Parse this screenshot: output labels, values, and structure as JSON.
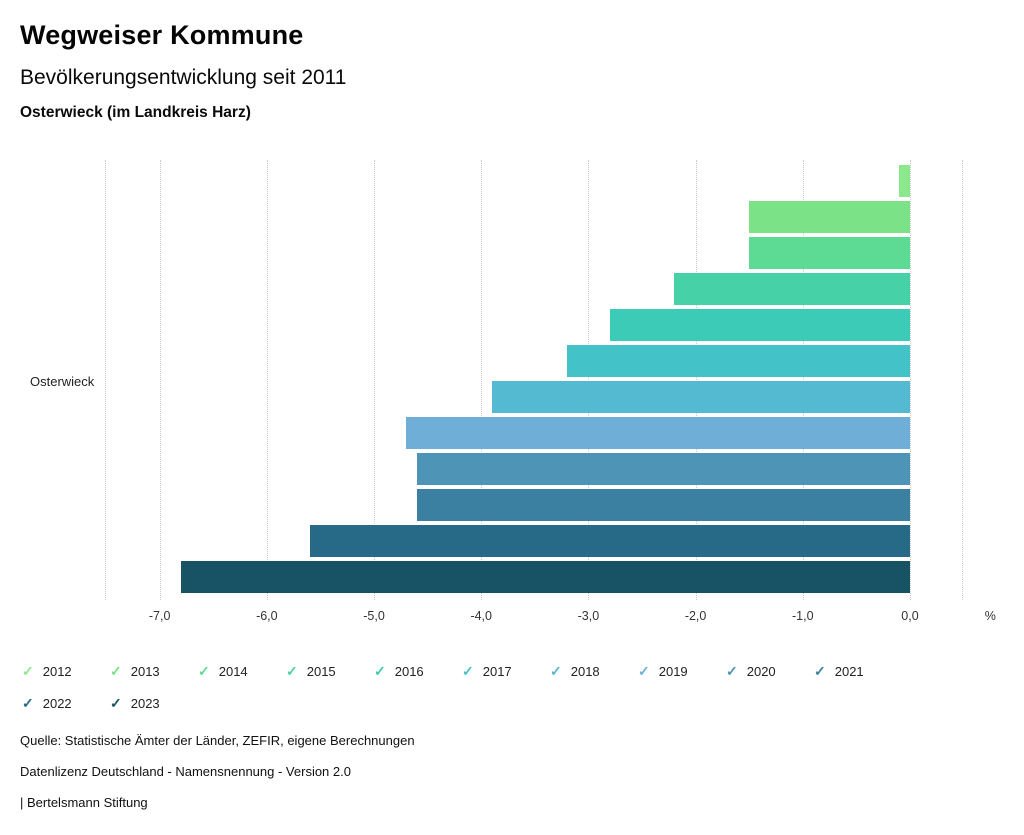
{
  "header": {
    "title": "Wegweiser Kommune",
    "subtitle": "Bevölkerungsentwicklung seit 2011",
    "region": "Osterwieck (im Landkreis Harz)"
  },
  "chart_data": {
    "type": "bar",
    "orientation": "horizontal",
    "title": "Bevölkerungsentwicklung seit 2011",
    "category_label": "Osterwieck",
    "xlabel": "%",
    "ylabel": "Osterwieck",
    "xlim": [
      -7.51,
      0.7
    ],
    "x_ticks": [
      -7,
      -6,
      -5,
      -4,
      -3,
      -2,
      -1,
      0
    ],
    "x_tick_labels": [
      "-7,0",
      "-6,0",
      "-5,0",
      "-4,0",
      "-3,0",
      "-2,0",
      "-1,0",
      "0,0"
    ],
    "x_axis_unit": "%",
    "gridline_values": [
      -7.51,
      -7,
      -6,
      -5,
      -4,
      -3,
      -2,
      -1,
      0,
      0.49
    ],
    "grid": true,
    "legend_position": "bottom",
    "check_glyph": "✓",
    "series": [
      {
        "name": "2012",
        "value": -0.1,
        "color": "#8CE88C"
      },
      {
        "name": "2013",
        "value": -1.5,
        "color": "#7CE287"
      },
      {
        "name": "2014",
        "value": -1.5,
        "color": "#5DDA93"
      },
      {
        "name": "2015",
        "value": -2.2,
        "color": "#46D1A6"
      },
      {
        "name": "2016",
        "value": -2.8,
        "color": "#3CCBB7"
      },
      {
        "name": "2017",
        "value": -3.2,
        "color": "#43C3C7"
      },
      {
        "name": "2018",
        "value": -3.9,
        "color": "#53BAD2"
      },
      {
        "name": "2019",
        "value": -4.7,
        "color": "#6FAED6"
      },
      {
        "name": "2020",
        "value": -4.6,
        "color": "#4E94B6"
      },
      {
        "name": "2021",
        "value": -4.6,
        "color": "#3B80A1"
      },
      {
        "name": "2022",
        "value": -5.6,
        "color": "#266A88"
      },
      {
        "name": "2023",
        "value": -6.8,
        "color": "#175364"
      }
    ]
  },
  "footer": {
    "source": "Quelle: Statistische Ämter der Länder, ZEFIR, eigene Berechnungen",
    "license": "Datenlizenz Deutschland - Namensnennung - Version 2.0",
    "attribution": "| Bertelsmann Stiftung"
  }
}
